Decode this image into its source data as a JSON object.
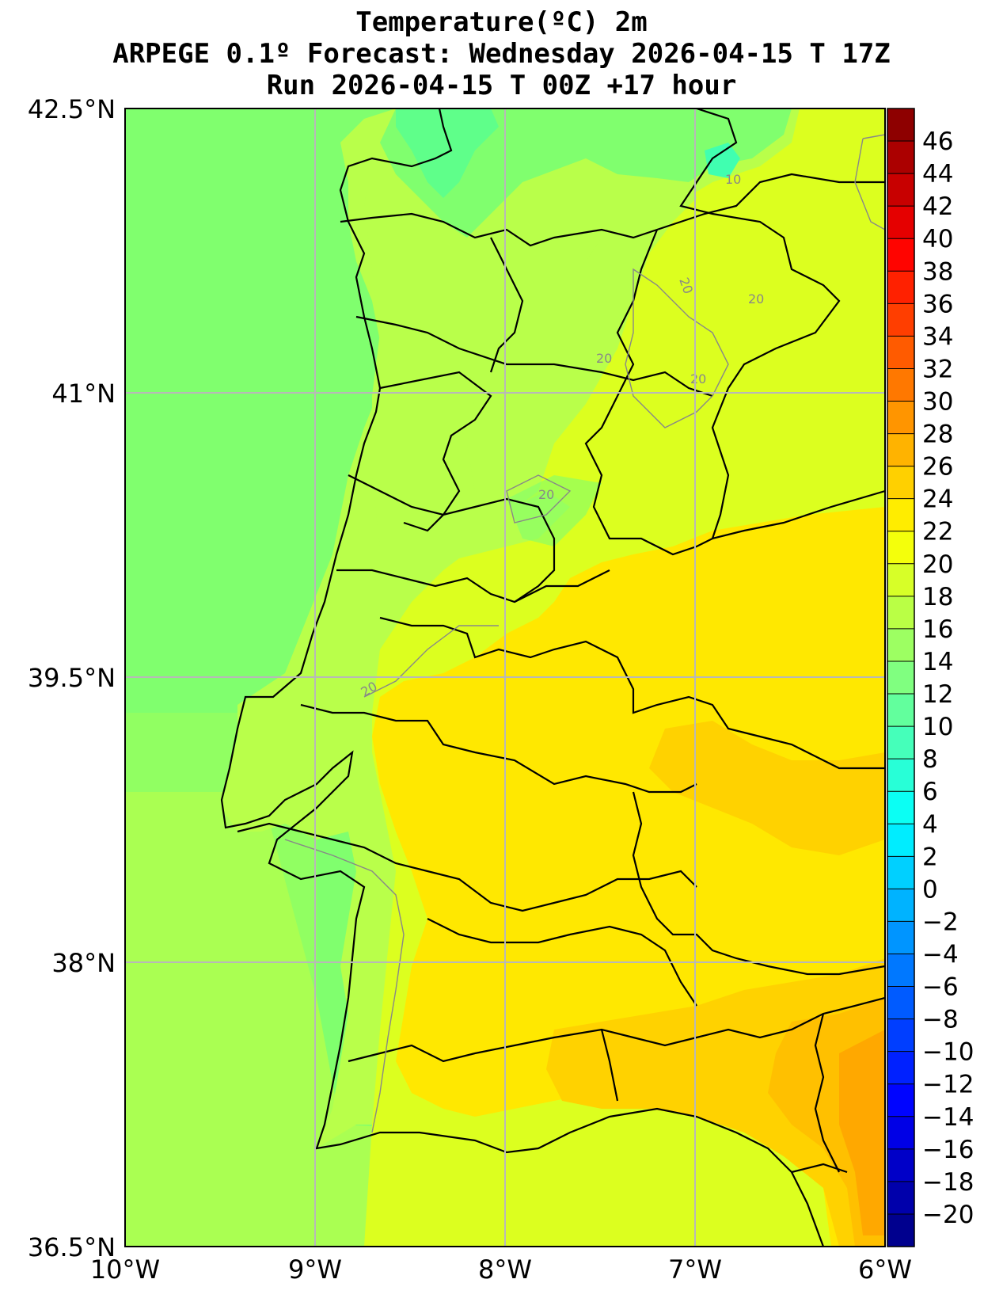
{
  "title": {
    "line1": "Temperature(ºC) 2m",
    "line2": "ARPEGE 0.1º Forecast: Wednesday 2026-04-15 T 17Z",
    "line3": "Run 2026-04-15 T 00Z +17 hour"
  },
  "axes": {
    "lon_ticks": [
      "10°W",
      "9°W",
      "8°W",
      "7°W",
      "6°W"
    ],
    "lat_ticks": [
      "42.5°N",
      "41°N",
      "39.5°N",
      "38°N",
      "36.5°N"
    ],
    "lon_range": [
      -10,
      -6
    ],
    "lat_range": [
      36.5,
      42.5
    ],
    "grid": true
  },
  "colorbar": {
    "min": -22,
    "max": 48,
    "step": 2,
    "labels": [
      "46",
      "44",
      "42",
      "40",
      "38",
      "36",
      "34",
      "32",
      "30",
      "28",
      "26",
      "24",
      "22",
      "20",
      "18",
      "16",
      "14",
      "12",
      "10",
      "8",
      "6",
      "4",
      "2",
      "0",
      "−2",
      "−4",
      "−6",
      "−8",
      "−10",
      "−12",
      "−14",
      "−16",
      "−18",
      "−20"
    ]
  },
  "contour_labels": [
    "10",
    "20",
    "20",
    "20",
    "20",
    "20",
    "20"
  ],
  "colors": {
    "sea": "#80ff6e",
    "land_cool": "#b9ff4a",
    "land_mid": "#dcff1f",
    "land_warm": "#ffe800",
    "land_hot": "#ffc000",
    "land_hottest": "#ffa800",
    "cold_spot": "#40ffb0"
  }
}
